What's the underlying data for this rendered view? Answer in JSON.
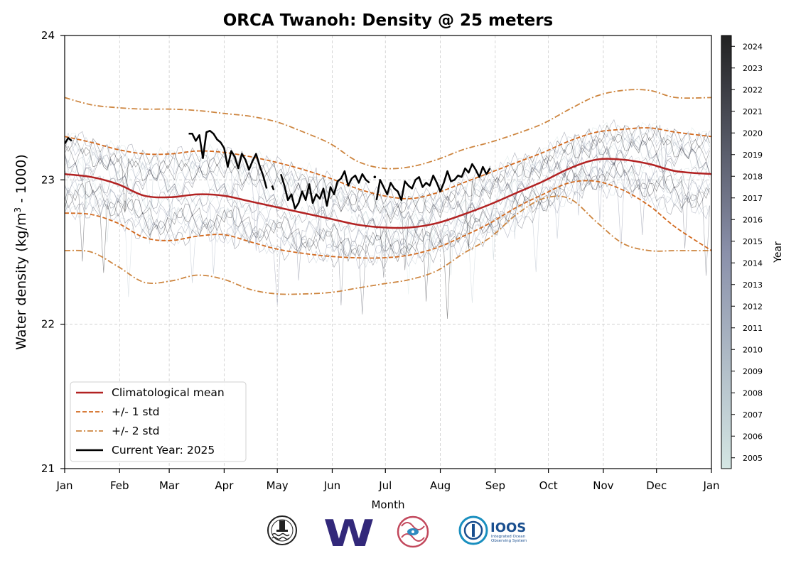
{
  "chart_data": {
    "type": "line",
    "title": "ORCA Twanoh: Density @ 25 meters",
    "ylabel_main": "Water density (kg/m",
    "ylabel_sup": "3",
    "ylabel_tail": " - 1000)",
    "xlabel": "Month",
    "ylim": [
      21,
      24
    ],
    "yticks": [
      "21",
      "22",
      "23",
      "24"
    ],
    "xlim_doy": [
      0,
      365
    ],
    "xticks": [
      {
        "label": "Jan",
        "doy": 0
      },
      {
        "label": "Feb",
        "doy": 31
      },
      {
        "label": "Mar",
        "doy": 59
      },
      {
        "label": "Apr",
        "doy": 90
      },
      {
        "label": "May",
        "doy": 120
      },
      {
        "label": "Jun",
        "doy": 151
      },
      {
        "label": "Jul",
        "doy": 181
      },
      {
        "label": "Aug",
        "doy": 212
      },
      {
        "label": "Sep",
        "doy": 243
      },
      {
        "label": "Oct",
        "doy": 273
      },
      {
        "label": "Nov",
        "doy": 304
      },
      {
        "label": "Dec",
        "doy": 334
      },
      {
        "label": "Jan",
        "doy": 365
      }
    ],
    "grid": true,
    "legend_position": "lower-left",
    "legend": [
      {
        "label": "Climatological mean",
        "style": "solid",
        "color": "#b22222"
      },
      {
        "label": "+/- 1 std",
        "style": "dashed",
        "color": "#d2691e"
      },
      {
        "label": "+/- 2 std",
        "style": "dashdot",
        "color": "#cd853f"
      },
      {
        "label": "Current Year: 2025",
        "style": "solid",
        "color": "#000000"
      }
    ],
    "colorbar": {
      "label": "Year",
      "years": [
        "2005",
        "2006",
        "2007",
        "2008",
        "2009",
        "2010",
        "2011",
        "2012",
        "2013",
        "2014",
        "2015",
        "2016",
        "2017",
        "2018",
        "2019",
        "2020",
        "2021",
        "2022",
        "2023",
        "2024"
      ],
      "color_low": "#d4e6e3",
      "color_mid": "#8a90aa",
      "color_high": "#222222"
    },
    "doy_axis": [
      0,
      15,
      30,
      45,
      60,
      75,
      90,
      105,
      120,
      135,
      150,
      165,
      180,
      195,
      210,
      225,
      240,
      255,
      270,
      285,
      300,
      315,
      330,
      345,
      365
    ],
    "clim_mean": [
      23.04,
      23.02,
      22.97,
      22.89,
      22.88,
      22.9,
      22.89,
      22.85,
      22.81,
      22.77,
      22.73,
      22.69,
      22.67,
      22.67,
      22.7,
      22.76,
      22.83,
      22.91,
      22.99,
      23.08,
      23.14,
      23.14,
      23.11,
      23.06,
      23.04
    ],
    "plus_1std": [
      23.3,
      23.26,
      23.21,
      23.18,
      23.18,
      23.2,
      23.19,
      23.16,
      23.12,
      23.07,
      23.01,
      22.94,
      22.89,
      22.87,
      22.91,
      22.98,
      23.05,
      23.12,
      23.19,
      23.27,
      23.33,
      23.35,
      23.36,
      23.33,
      23.3
    ],
    "minus_1std": [
      22.77,
      22.76,
      22.7,
      22.6,
      22.58,
      22.61,
      22.62,
      22.57,
      22.52,
      22.49,
      22.47,
      22.46,
      22.46,
      22.48,
      22.53,
      22.61,
      22.7,
      22.81,
      22.9,
      22.98,
      22.99,
      22.93,
      22.82,
      22.67,
      22.51
    ],
    "plus_2std": [
      23.57,
      23.52,
      23.5,
      23.49,
      23.49,
      23.48,
      23.46,
      23.44,
      23.4,
      23.33,
      23.25,
      23.13,
      23.08,
      23.09,
      23.14,
      23.21,
      23.26,
      23.32,
      23.39,
      23.49,
      23.58,
      23.62,
      23.62,
      23.57,
      23.57
    ],
    "minus_2std": [
      22.51,
      22.5,
      22.4,
      22.29,
      22.3,
      22.34,
      22.31,
      22.24,
      22.21,
      22.21,
      22.22,
      22.25,
      22.28,
      22.31,
      22.37,
      22.49,
      22.6,
      22.76,
      22.87,
      22.87,
      22.71,
      22.56,
      22.51,
      22.51,
      22.51
    ],
    "current_year": {
      "name": "Current Year: 2025",
      "segments": [
        {
          "doy": [
            0,
            2,
            4
          ],
          "value": [
            23.25,
            23.29,
            23.27
          ]
        },
        {
          "doy": [
            70,
            72,
            74,
            76,
            78,
            80,
            82,
            84,
            86,
            88,
            90,
            92,
            94,
            96,
            98,
            100,
            102,
            104,
            106,
            108,
            110,
            112,
            114
          ],
          "value": [
            23.32,
            23.32,
            23.27,
            23.31,
            23.15,
            23.33,
            23.34,
            23.32,
            23.28,
            23.26,
            23.22,
            23.09,
            23.2,
            23.16,
            23.08,
            23.18,
            23.14,
            23.07,
            23.13,
            23.18,
            23.1,
            23.03,
            22.94
          ]
        },
        {
          "doy": [
            117,
            118
          ],
          "value": [
            22.96,
            22.93
          ]
        },
        {
          "doy": [
            122,
            124,
            126,
            128,
            130,
            132,
            134,
            136,
            138,
            140,
            142,
            144,
            146,
            148,
            150,
            152,
            154,
            156,
            158,
            160,
            162,
            164,
            166,
            168,
            170,
            172
          ],
          "value": [
            23.04,
            22.96,
            22.86,
            22.9,
            22.8,
            22.84,
            22.92,
            22.86,
            22.97,
            22.84,
            22.9,
            22.87,
            22.94,
            22.82,
            22.95,
            22.9,
            22.99,
            23.01,
            23.06,
            22.96,
            23.01,
            23.03,
            22.98,
            23.04,
            23.0,
            22.98
          ]
        },
        {
          "doy": [
            175
          ],
          "value": [
            23.02
          ]
        },
        {
          "doy": [
            176,
            178,
            180,
            182,
            184,
            186,
            188,
            190,
            192,
            194,
            196,
            198,
            200,
            202,
            204,
            206,
            208,
            210,
            212,
            214,
            216,
            218,
            220,
            222,
            224,
            226,
            228,
            230,
            232,
            234,
            236,
            238,
            240
          ],
          "value": [
            22.86,
            23.0,
            22.95,
            22.9,
            22.98,
            22.94,
            22.92,
            22.86,
            22.99,
            22.96,
            22.94,
            23.0,
            23.02,
            22.95,
            22.98,
            22.96,
            23.03,
            22.98,
            22.92,
            22.98,
            23.06,
            22.99,
            23.0,
            23.03,
            23.02,
            23.08,
            23.05,
            23.11,
            23.07,
            23.02,
            23.09,
            23.04,
            23.08
          ]
        }
      ]
    }
  },
  "logos": [
    {
      "name": "orca-buoy-logo"
    },
    {
      "name": "uw-logo",
      "text": "W"
    },
    {
      "name": "nanoos-logo"
    },
    {
      "name": "ioos-logo",
      "text": "IOOS",
      "subtext1": "Integrated Ocean",
      "subtext2": "Observing System"
    }
  ]
}
